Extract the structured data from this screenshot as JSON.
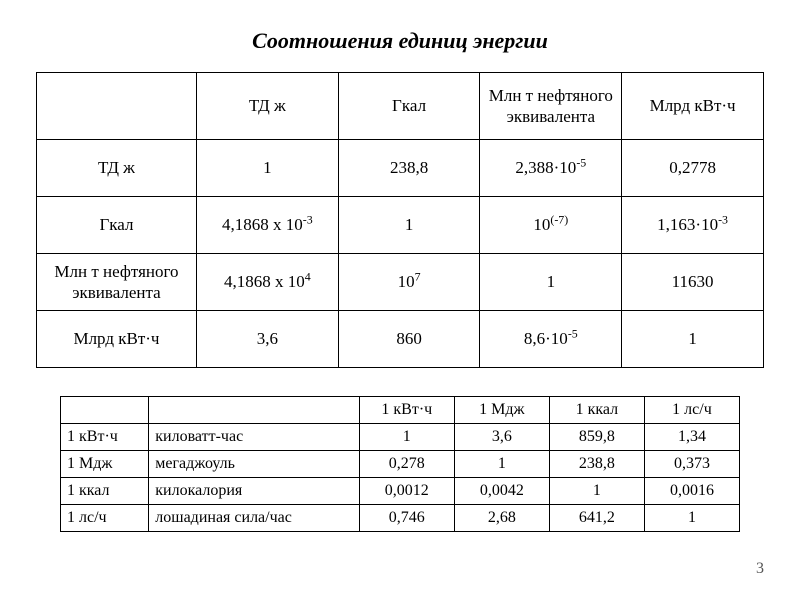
{
  "title": "Соотношения единиц энергии",
  "page_number": "3",
  "table1": {
    "columns": [
      "",
      "ТД ж",
      "Гкал",
      "Млн т нефтяного эквивалента",
      "Млрд кВт·ч"
    ],
    "col_widths_pct": [
      22,
      19.5,
      19.5,
      19.5,
      19.5
    ],
    "row_labels": [
      "ТД ж",
      "Гкал",
      "Млн т нефтяного эквивалента",
      "Млрд кВт·ч"
    ],
    "cells": [
      [
        "1",
        "238,8",
        "2,388·10<sup>-5</sup>",
        "0,2778"
      ],
      [
        "4,1868 x 10<sup>-3</sup>",
        "1",
        "10<sup>(-7)</sup>",
        "1,163·10<sup>-3</sup>"
      ],
      [
        "4,1868 x 10<sup>4</sup>",
        "10<sup>7</sup>",
        "1",
        "11630"
      ],
      [
        "3,6",
        "860",
        "8,6·10<sup>-5</sup>",
        "1"
      ]
    ],
    "header_fontsize": 17,
    "cell_fontsize": 17,
    "border_color": "#000000",
    "text_color": "#000000",
    "background_color": "#ffffff"
  },
  "table2": {
    "value_headers": [
      "1 кВт·ч",
      "1 Мдж",
      "1 ккал",
      "1 лс/ч"
    ],
    "rows": [
      {
        "code": "1 кВт·ч",
        "name": "киловатт-час",
        "vals": [
          "1",
          "3,6",
          "859,8",
          "1,34"
        ]
      },
      {
        "code": "1 Мдж",
        "name": "мегаджоуль",
        "vals": [
          "0,278",
          "1",
          "238,8",
          "0,373"
        ]
      },
      {
        "code": "1 ккал",
        "name": "килокалория",
        "vals": [
          "0,0012",
          "0,0042",
          "1",
          "0,0016"
        ]
      },
      {
        "code": "1 лс/ч",
        "name": "лошадиная сила/час",
        "vals": [
          "0,746",
          "2,68",
          "641,2",
          "1"
        ]
      }
    ],
    "cell_fontsize": 16,
    "border_color": "#000000",
    "text_color": "#000000",
    "background_color": "#ffffff"
  },
  "style": {
    "page_bg": "#ffffff",
    "font_family": "Times New Roman",
    "title_fontsize": 22,
    "title_italic": true,
    "title_bold": true
  }
}
